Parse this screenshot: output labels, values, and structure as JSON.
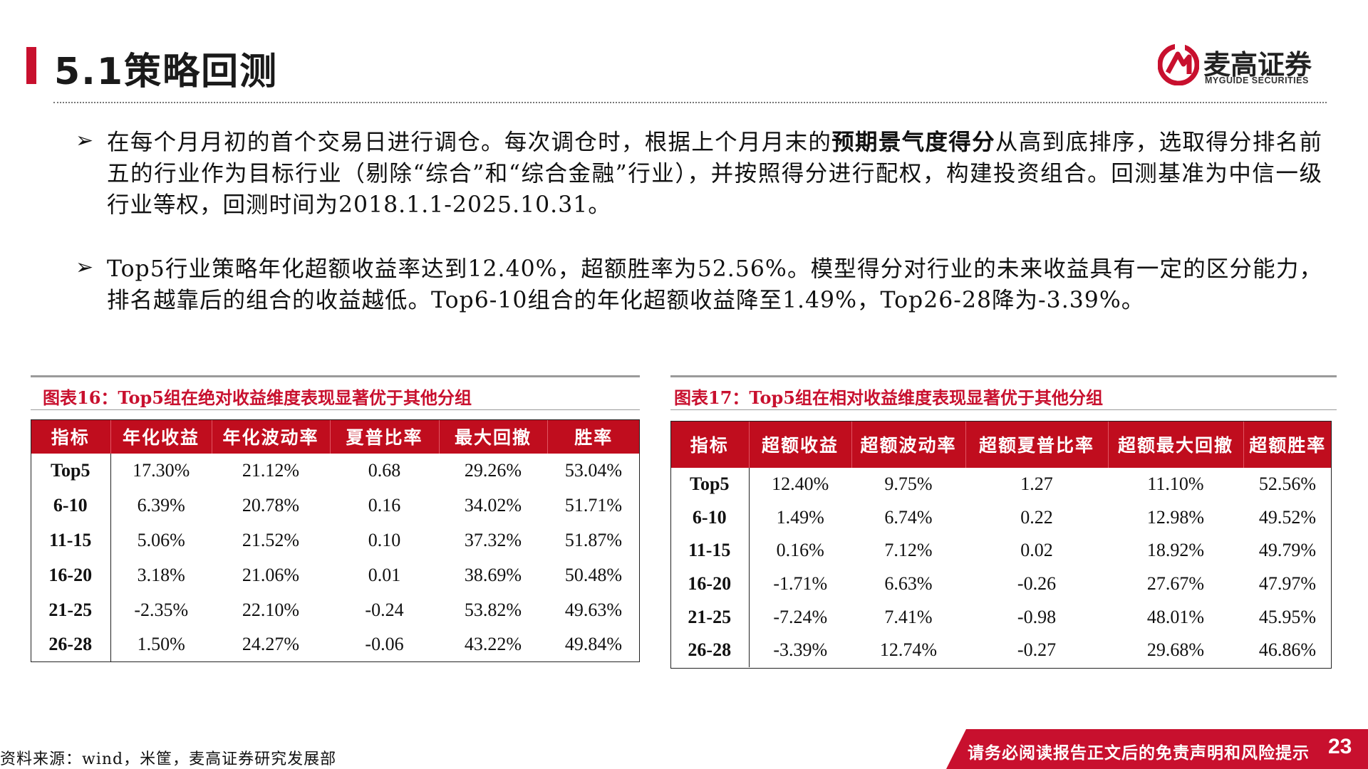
{
  "header": {
    "title": "5.1策略回测",
    "logo_cn": "麦高证券",
    "logo_en": "MYGUIDE SECURITIES"
  },
  "bullets": [
    {
      "pre": "在每个月月初的首个交易日进行调仓。每次调仓时，根据上个月月末的",
      "bold": "预期景气度得分",
      "post": "从高到底排序，选取得分排名前五的行业作为目标行业（剔除“综合”和“综合金融”行业），并按照得分进行配权，构建投资组合。回测基准为中信一级行业等权，回测时间为2018.1.1-2025.10.31。"
    },
    {
      "pre": "Top5行业策略年化超额收益率达到12.40%，超额胜率为52.56%。模型得分对行业的未来收益具有一定的区分能力，排名越靠后的组合的收益越低。Top6-10组合的年化超额收益降至1.49%，Top26-28降为-3.39%。",
      "bold": "",
      "post": ""
    }
  ],
  "bullet_glyph": "➢",
  "table1": {
    "title": "图表16：Top5组在绝对收益维度表现显著优于其他分组",
    "headers": [
      "指标",
      "年化收益",
      "年化波动率",
      "夏普比率",
      "最大回撤",
      "胜率"
    ],
    "rows": [
      [
        "Top5",
        "17.30%",
        "21.12%",
        "0.68",
        "29.26%",
        "53.04%"
      ],
      [
        "6-10",
        "6.39%",
        "20.78%",
        "0.16",
        "34.02%",
        "51.71%"
      ],
      [
        "11-15",
        "5.06%",
        "21.52%",
        "0.10",
        "37.32%",
        "51.87%"
      ],
      [
        "16-20",
        "3.18%",
        "21.06%",
        "0.01",
        "38.69%",
        "50.48%"
      ],
      [
        "21-25",
        "-2.35%",
        "22.10%",
        "-0.24",
        "53.82%",
        "49.63%"
      ],
      [
        "26-28",
        "1.50%",
        "24.27%",
        "-0.06",
        "43.22%",
        "49.84%"
      ]
    ]
  },
  "table2": {
    "title": "图表17：Top5组在相对收益维度表现显著优于其他分组",
    "headers": [
      "指标",
      "超额收益",
      "超额波动率",
      "超额夏普比率",
      "超额最大回撤",
      "超额胜率"
    ],
    "rows": [
      [
        "Top5",
        "12.40%",
        "9.75%",
        "1.27",
        "11.10%",
        "52.56%"
      ],
      [
        "6-10",
        "1.49%",
        "6.74%",
        "0.22",
        "12.98%",
        "49.52%"
      ],
      [
        "11-15",
        "0.16%",
        "7.12%",
        "0.02",
        "18.92%",
        "49.79%"
      ],
      [
        "16-20",
        "-1.71%",
        "6.63%",
        "-0.26",
        "27.67%",
        "47.97%"
      ],
      [
        "21-25",
        "-7.24%",
        "7.41%",
        "-0.98",
        "48.01%",
        "45.95%"
      ],
      [
        "26-28",
        "-3.39%",
        "12.74%",
        "-0.27",
        "29.68%",
        "46.86%"
      ]
    ]
  },
  "footer": {
    "source": "资料来源：wind，米筐，麦高证券研究发展部",
    "disclaimer": "请务必阅读报告正文后的免责声明和风险提示",
    "page": "23"
  },
  "colors": {
    "accent": "#c8102e",
    "header_fill": "#c00d1e"
  }
}
